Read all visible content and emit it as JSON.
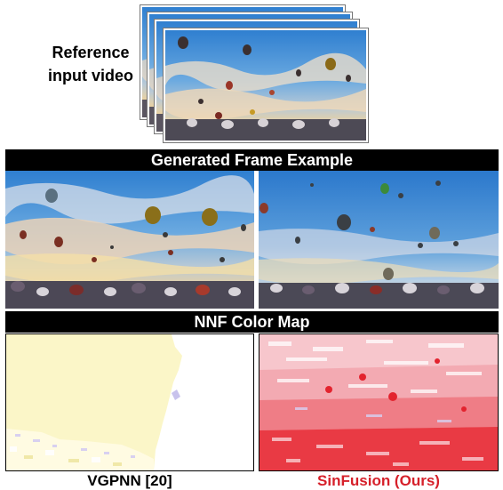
{
  "reference": {
    "label_line1": "Reference",
    "label_line2": "input video"
  },
  "sections": {
    "generated_title": "Generated Frame Example",
    "nnf_title": "NNF Color Map"
  },
  "captions": {
    "left": "VGPNN [20]",
    "right": "SinFusion (Ours)"
  },
  "colors": {
    "caption_left": "#000000",
    "caption_right": "#d6202a",
    "banner_bg": "#000000",
    "banner_text": "#ffffff"
  }
}
